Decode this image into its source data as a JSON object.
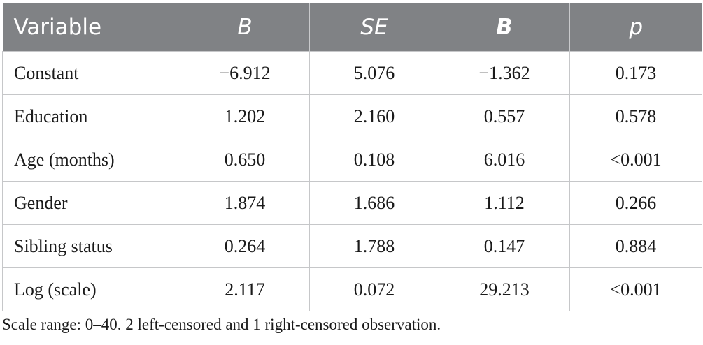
{
  "table": {
    "headers": [
      "Variable",
      "B",
      "SE",
      "B",
      "p"
    ],
    "rows": [
      [
        "Constant",
        "−6.912",
        "5.076",
        "−1.362",
        "0.173"
      ],
      [
        "Education",
        "1.202",
        "2.160",
        "0.557",
        "0.578"
      ],
      [
        "Age (months)",
        "0.650",
        "0.108",
        "6.016",
        "<0.001"
      ],
      [
        "Gender",
        "1.874",
        "1.686",
        "1.112",
        "0.266"
      ],
      [
        "Sibling status",
        "0.264",
        "1.788",
        "0.147",
        "0.884"
      ],
      [
        "Log (scale)",
        "2.117",
        "0.072",
        "29.213",
        "<0.001"
      ]
    ]
  },
  "footnote": "Scale range: 0–40. 2 left-censored and 1 right-censored observation.",
  "colors": {
    "header_bg": "#808285",
    "header_text": "#ffffff",
    "border": "#c6c7c9"
  }
}
